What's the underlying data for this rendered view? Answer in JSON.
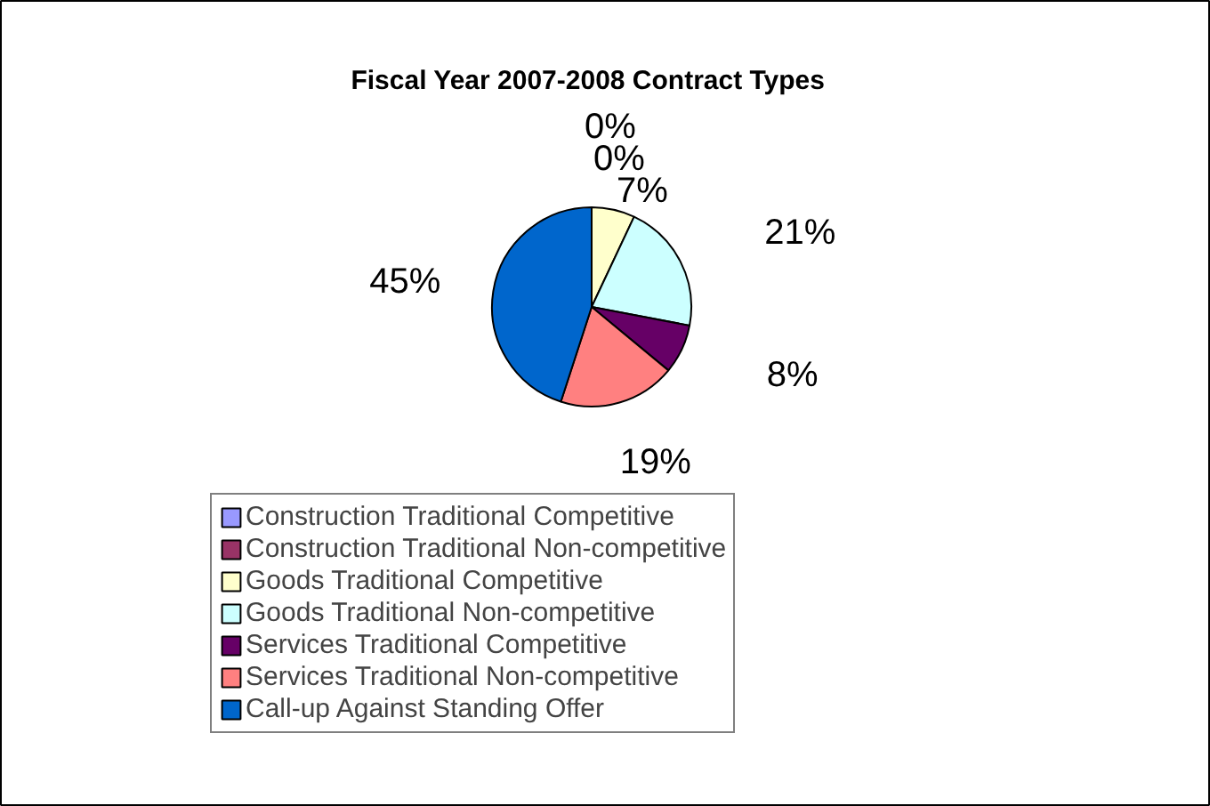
{
  "chart_data": {
    "type": "pie",
    "title": "Fiscal Year 2007-2008 Contract Types",
    "categories": [
      "Construction Traditional Competitive",
      "Construction Traditional Non-competitive",
      "Goods Traditional Competitive",
      "Goods Traditional Non-competitive",
      "Services Traditional Competitive",
      "Services Traditional Non-competitive",
      "Call-up Against Standing Offer"
    ],
    "values": [
      0,
      0,
      7,
      21,
      8,
      19,
      45
    ],
    "value_labels": [
      "0%",
      "0%",
      "7%",
      "21%",
      "8%",
      "19%",
      "45%"
    ],
    "colors": [
      "#9999ff",
      "#993366",
      "#ffffcc",
      "#ccffff",
      "#660066",
      "#ff8080",
      "#0066cc"
    ],
    "legend": "bottom"
  }
}
